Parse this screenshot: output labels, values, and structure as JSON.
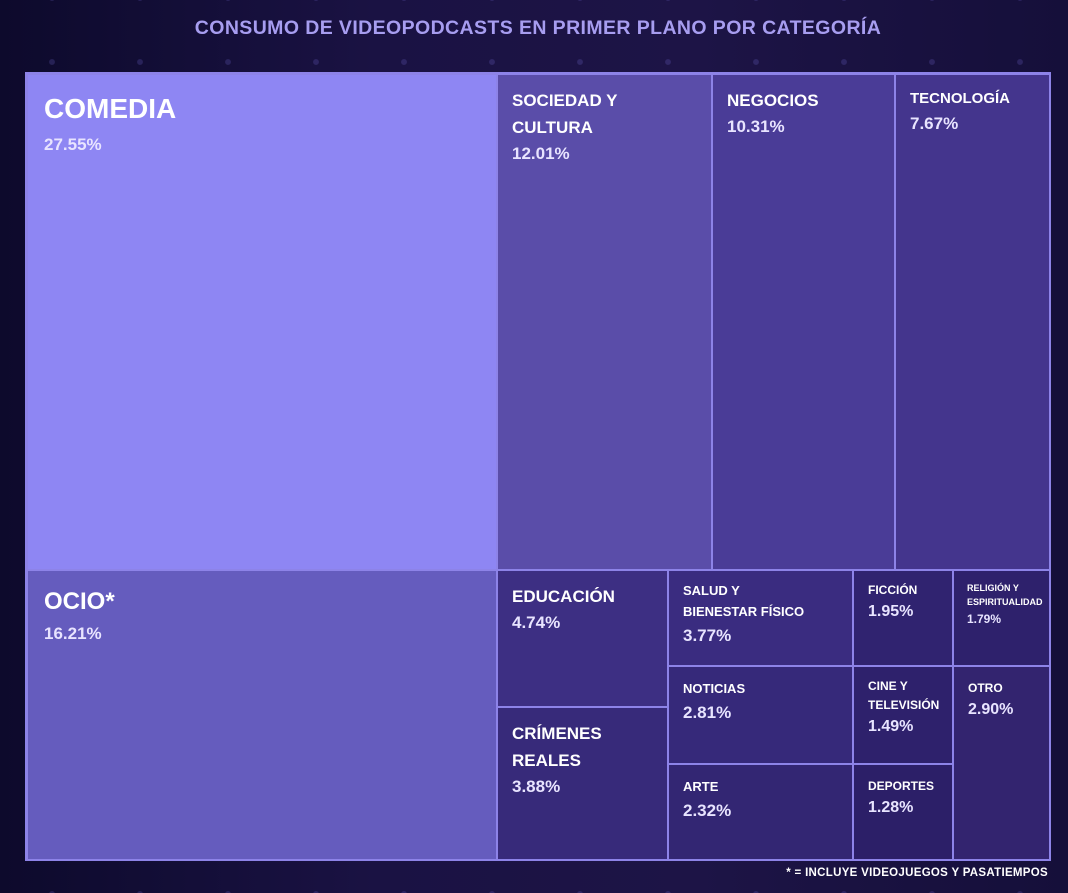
{
  "title": "CONSUMO DE VIDEOPODCASTS EN PRIMER PLANO POR CATEGORÍA",
  "footnote": "* = INCLUYE VIDEOJUEGOS Y PASATIEMPOS",
  "chart_data": {
    "type": "treemap",
    "title": "CONSUMO DE VIDEOPODCASTS EN PRIMER PLANO POR CATEGORÍA",
    "unit": "%",
    "categories": [
      {
        "name": "COMEDIA",
        "value": 27.55,
        "label": "27.55%",
        "color": "#8e86f3"
      },
      {
        "name": "OCIO*",
        "value": 16.21,
        "label": "16.21%",
        "color": "#655cbe"
      },
      {
        "name": "SOCIEDAD Y CULTURA",
        "value": 12.01,
        "label": "12.01%",
        "color": "#5a4da9"
      },
      {
        "name": "NEGOCIOS",
        "value": 10.31,
        "label": "10.31%",
        "color": "#4a3c97"
      },
      {
        "name": "TECNOLOGÍA",
        "value": 7.67,
        "label": "7.67%",
        "color": "#44358d"
      },
      {
        "name": "EDUCACIÓN",
        "value": 4.74,
        "label": "4.74%",
        "color": "#3d2f83"
      },
      {
        "name": "CRÍMENES REALES",
        "value": 3.88,
        "label": "3.88%",
        "color": "#372a7a"
      },
      {
        "name": "SALUD Y BIENESTAR FÍSICO",
        "value": 3.77,
        "label": "3.77%",
        "color": "#3a2c80"
      },
      {
        "name": "NOTICIAS",
        "value": 2.81,
        "label": "2.81%",
        "color": "#36297a"
      },
      {
        "name": "ARTE",
        "value": 2.32,
        "label": "2.32%",
        "color": "#332673"
      },
      {
        "name": "FICCIÓN",
        "value": 1.95,
        "label": "1.95%",
        "color": "#302370"
      },
      {
        "name": "RELIGIÓN Y ESPIRITUALIDAD",
        "value": 1.79,
        "label": "1.79%",
        "color": "#2e216c"
      },
      {
        "name": "CINE Y TELEVISIÓN",
        "value": 1.49,
        "label": "1.49%",
        "color": "#2e216c"
      },
      {
        "name": "DEPORTES",
        "value": 1.28,
        "label": "1.28%",
        "color": "#2c1f68"
      },
      {
        "name": "OTRO",
        "value": 2.9,
        "label": "2.90%",
        "color": "#33246f"
      }
    ]
  }
}
